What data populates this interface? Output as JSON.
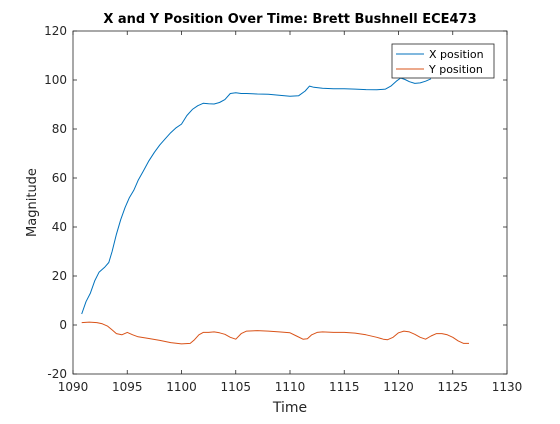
{
  "chart_data": {
    "type": "line",
    "title": "X and Y Position Over Time: Brett Bushnell ECE473",
    "xlabel": "Time",
    "ylabel": "Magnitude",
    "xlim": [
      1090,
      1130
    ],
    "ylim": [
      -20,
      120
    ],
    "xticks": [
      1090,
      1095,
      1100,
      1105,
      1110,
      1115,
      1120,
      1125,
      1130
    ],
    "yticks": [
      -20,
      0,
      20,
      40,
      60,
      80,
      100,
      120
    ],
    "grid": false,
    "legend": "top-right",
    "series": [
      {
        "name": "X position",
        "color": "#0072BD",
        "x": [
          1090.8,
          1091.2,
          1091.6,
          1092.0,
          1092.4,
          1092.9,
          1093.3,
          1093.6,
          1094.0,
          1094.4,
          1094.8,
          1095.2,
          1095.6,
          1096.0,
          1096.5,
          1097.0,
          1097.5,
          1098.0,
          1098.5,
          1099.0,
          1099.5,
          1100.0,
          1100.5,
          1101.0,
          1101.5,
          1102.0,
          1102.5,
          1103.0,
          1103.5,
          1104.0,
          1104.5,
          1105.0,
          1105.5,
          1106.0,
          1107.0,
          1108.0,
          1109.0,
          1110.0,
          1110.8,
          1111.4,
          1111.8,
          1112.2,
          1113.0,
          1114.0,
          1115.0,
          1116.0,
          1117.0,
          1118.0,
          1118.8,
          1119.3,
          1119.8,
          1120.2,
          1120.6,
          1121.0,
          1121.5,
          1122.0,
          1122.5,
          1123.0
        ],
        "values": [
          4.5,
          9.5,
          13,
          18,
          21.5,
          23.5,
          25.5,
          30,
          37,
          43,
          48,
          52,
          55,
          59,
          63,
          67,
          70.5,
          73.5,
          76,
          78.5,
          80.5,
          82,
          85.5,
          88,
          89.5,
          90.5,
          90.3,
          90.2,
          90.8,
          92,
          94.5,
          94.8,
          94.5,
          94.5,
          94.3,
          94.2,
          93.8,
          93.4,
          93.6,
          95.5,
          97.5,
          97,
          96.6,
          96.4,
          96.4,
          96.3,
          96.1,
          96.0,
          96.3,
          97.5,
          99.5,
          100.8,
          100.2,
          99.3,
          98.6,
          98.8,
          99.5,
          100.5
        ]
      },
      {
        "name": "Y position",
        "color": "#D95319",
        "x": [
          1090.8,
          1091.5,
          1092.2,
          1092.7,
          1093.2,
          1093.6,
          1094.0,
          1094.5,
          1095.0,
          1095.5,
          1096.0,
          1097.0,
          1098.0,
          1099.0,
          1100.0,
          1100.8,
          1101.2,
          1101.6,
          1102.0,
          1102.5,
          1103.0,
          1103.5,
          1104.0,
          1104.5,
          1105.0,
          1105.5,
          1106.0,
          1107.0,
          1108.0,
          1109.0,
          1110.0,
          1110.6,
          1111.2,
          1111.6,
          1112.0,
          1112.5,
          1113.0,
          1114.0,
          1115.0,
          1116.0,
          1117.0,
          1118.0,
          1118.6,
          1119.0,
          1119.5,
          1120.0,
          1120.5,
          1121.0,
          1121.5,
          1122.0,
          1122.5,
          1123.0,
          1123.5,
          1124.0,
          1124.5,
          1125.0,
          1125.5,
          1126.0,
          1126.5
        ],
        "values": [
          1,
          1.2,
          1,
          0.5,
          -0.5,
          -2,
          -3.5,
          -4,
          -3,
          -4,
          -4.8,
          -5.5,
          -6.3,
          -7.2,
          -7.7,
          -7.5,
          -6,
          -4,
          -3,
          -3,
          -2.8,
          -3.2,
          -3.8,
          -5,
          -5.8,
          -3.5,
          -2.5,
          -2.3,
          -2.5,
          -2.8,
          -3.2,
          -4.5,
          -5.8,
          -5.6,
          -4,
          -3,
          -2.8,
          -3,
          -3,
          -3.3,
          -4,
          -5,
          -5.8,
          -6,
          -5,
          -3.2,
          -2.5,
          -2.8,
          -3.8,
          -5,
          -5.8,
          -4.5,
          -3.5,
          -3.5,
          -4,
          -5,
          -6.5,
          -7.5,
          -7.5
        ]
      }
    ]
  }
}
